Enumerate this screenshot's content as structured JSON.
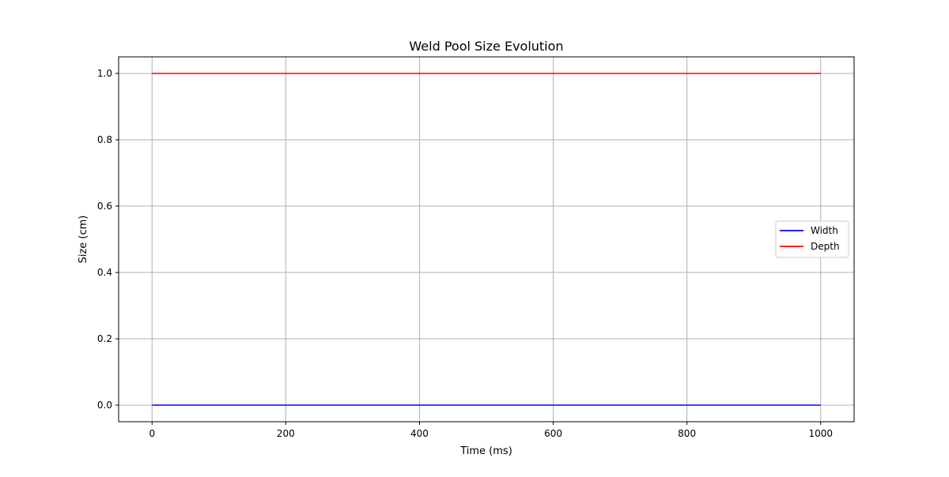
{
  "chart_data": {
    "type": "line",
    "title": "Weld Pool Size Evolution",
    "xlabel": "Time (ms)",
    "ylabel": "Size (cm)",
    "xlim": [
      -50,
      1050
    ],
    "ylim": [
      -0.05,
      1.05
    ],
    "x_ticks": [
      0,
      200,
      400,
      600,
      800,
      1000
    ],
    "y_ticks": [
      0.0,
      0.2,
      0.4,
      0.6,
      0.8,
      1.0
    ],
    "x_tick_labels": [
      "0",
      "200",
      "400",
      "600",
      "800",
      "1000"
    ],
    "y_tick_labels": [
      "0.0",
      "0.2",
      "0.4",
      "0.6",
      "0.8",
      "1.0"
    ],
    "grid": true,
    "legend_position": "center-right",
    "series": [
      {
        "name": "Width",
        "color": "#0000ff",
        "x": [
          0,
          1000
        ],
        "y": [
          0.0,
          0.0
        ]
      },
      {
        "name": "Depth",
        "color": "#ff0000",
        "x": [
          0,
          1000
        ],
        "y": [
          1.0,
          1.0
        ]
      }
    ]
  }
}
